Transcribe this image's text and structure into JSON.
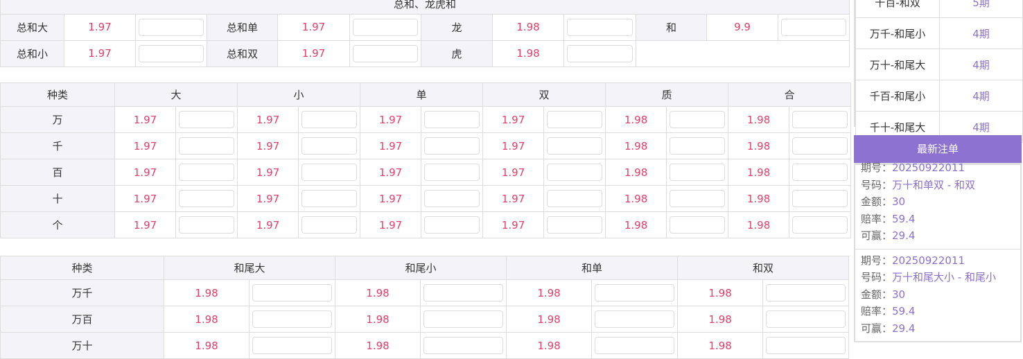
{
  "t1": {
    "title": "总和、龙虎和",
    "rows": [
      [
        {
          "label": "总和大",
          "odds": "1.97"
        },
        {
          "label": "总和单",
          "odds": "1.97"
        },
        {
          "label": "龙",
          "odds": "1.98"
        },
        {
          "label": "和",
          "odds": "9.9"
        }
      ],
      [
        {
          "label": "总和小",
          "odds": "1.97"
        },
        {
          "label": "总和双",
          "odds": "1.97"
        },
        {
          "label": "虎",
          "odds": "1.98"
        }
      ]
    ]
  },
  "t2": {
    "headers": [
      "种类",
      "大",
      "小",
      "单",
      "双",
      "质",
      "合"
    ],
    "rows": [
      {
        "label": "万",
        "odds": [
          "1.97",
          "1.97",
          "1.97",
          "1.97",
          "1.98",
          "1.98"
        ]
      },
      {
        "label": "千",
        "odds": [
          "1.97",
          "1.97",
          "1.97",
          "1.97",
          "1.98",
          "1.98"
        ]
      },
      {
        "label": "百",
        "odds": [
          "1.97",
          "1.97",
          "1.97",
          "1.97",
          "1.98",
          "1.98"
        ]
      },
      {
        "label": "十",
        "odds": [
          "1.97",
          "1.97",
          "1.97",
          "1.97",
          "1.98",
          "1.98"
        ]
      },
      {
        "label": "个",
        "odds": [
          "1.97",
          "1.97",
          "1.97",
          "1.97",
          "1.98",
          "1.98"
        ]
      }
    ]
  },
  "t3": {
    "headers": [
      "种类",
      "和尾大",
      "和尾小",
      "和单",
      "和双"
    ],
    "rows": [
      {
        "label": "万千",
        "odds": [
          "1.98",
          "1.98",
          "1.98",
          "1.98"
        ]
      },
      {
        "label": "万百",
        "odds": [
          "1.98",
          "1.98",
          "1.98",
          "1.98"
        ]
      },
      {
        "label": "万十",
        "odds": [
          "1.98",
          "1.98",
          "1.98",
          "1.98"
        ]
      }
    ]
  },
  "streaks": [
    {
      "name": "千百-和双",
      "count": "5期"
    },
    {
      "name": "万千-和尾小",
      "count": "4期"
    },
    {
      "name": "万十-和尾大",
      "count": "4期"
    },
    {
      "name": "千百-和尾小",
      "count": "4期"
    },
    {
      "name": "千十-和尾大",
      "count": "4期"
    }
  ],
  "latest": {
    "title": "最新注单",
    "labels": {
      "issue": "期号：",
      "code": "号码：",
      "amount": "金额：",
      "rate": "赔率：",
      "win": "可赢："
    },
    "bets": [
      {
        "issue": "20250922011",
        "code": "万十和单双 - 和双",
        "amount": "30",
        "rate": "59.4",
        "win": "29.4"
      },
      {
        "issue": "20250922011",
        "code": "万十和尾大小 - 和尾小",
        "amount": "30",
        "rate": "59.4",
        "win": "29.4"
      }
    ]
  },
  "colors": {
    "accent": "#8d72d1",
    "odds": "#e0406a"
  }
}
